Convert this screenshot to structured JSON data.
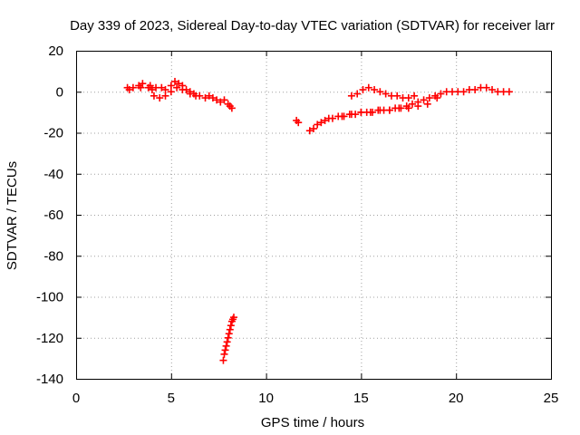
{
  "chart_data": {
    "type": "scatter",
    "title": "Day 339 of 2023, Sidereal Day-to-day VTEC variation (SDTVAR) for receiver larr",
    "xlabel": "GPS time / hours",
    "ylabel": "SDTVAR / TECUs",
    "xlim": [
      0,
      25
    ],
    "ylim": [
      -140,
      20
    ],
    "xticks": [
      0,
      5,
      10,
      15,
      20,
      25
    ],
    "yticks": [
      20,
      0,
      -20,
      -40,
      -60,
      -80,
      -100,
      -120,
      -140
    ],
    "grid": true,
    "marker": "+",
    "series_color": "#ff0000",
    "series": [
      {
        "name": "SDTVAR",
        "x": [
          2.7,
          2.8,
          3.0,
          3.3,
          3.4,
          3.5,
          3.8,
          3.9,
          4.0,
          4.2,
          4.5,
          4.7,
          5.0,
          5.2,
          5.4,
          5.6,
          5.8,
          6.0,
          6.2,
          4.1,
          4.4,
          4.7,
          5.0,
          5.3,
          5.6,
          6.0,
          6.3,
          6.5,
          6.8,
          7.0,
          7.2,
          7.4,
          7.6,
          7.8,
          8.0,
          8.1,
          8.2,
          7.75,
          7.8,
          7.85,
          7.9,
          7.95,
          8.0,
          8.05,
          8.1,
          8.15,
          8.2,
          8.25,
          8.3,
          11.6,
          11.7,
          12.3,
          12.5,
          12.7,
          12.9,
          13.1,
          13.3,
          13.5,
          13.8,
          14.1,
          14.4,
          14.7,
          15.0,
          15.3,
          15.6,
          15.9,
          16.2,
          16.5,
          16.8,
          17.1,
          17.4,
          17.7,
          18.0,
          18.3,
          18.6,
          18.9,
          19.2,
          19.5,
          19.8,
          20.1,
          20.4,
          20.7,
          21.0,
          21.3,
          21.6,
          21.9,
          22.2,
          22.5,
          22.8,
          14.5,
          14.8,
          15.1,
          15.4,
          15.7,
          16.0,
          16.3,
          16.6,
          16.9,
          17.2,
          17.5,
          17.8,
          14.0,
          14.5,
          15.0,
          15.5,
          16.0,
          16.5,
          17.0,
          17.5,
          18.0,
          18.5,
          19.0
        ],
        "y": [
          2,
          1,
          2,
          3,
          2,
          4,
          2,
          3,
          1,
          2,
          2,
          1,
          3,
          5,
          4,
          3,
          1,
          0,
          -1,
          -2,
          -3,
          -2,
          0,
          2,
          1,
          -1,
          -2,
          -2,
          -3,
          -2,
          -3,
          -4,
          -5,
          -4,
          -6,
          -7,
          -8,
          -131,
          -128,
          -126,
          -124,
          -122,
          -120,
          -118,
          -116,
          -114,
          -112,
          -111,
          -110,
          -14,
          -15,
          -19,
          -18,
          -16,
          -15,
          -14,
          -13,
          -13,
          -12,
          -12,
          -11,
          -11,
          -10,
          -10,
          -10,
          -9,
          -9,
          -9,
          -8,
          -8,
          -7,
          -6,
          -5,
          -4,
          -3,
          -2,
          -1,
          0,
          0,
          0,
          0,
          1,
          1,
          2,
          2,
          1,
          0,
          0,
          0,
          -2,
          -1,
          1,
          2,
          1,
          0,
          -1,
          -2,
          -2,
          -3,
          -3,
          -2,
          -12,
          -11,
          -10,
          -10,
          -9,
          -9,
          -8,
          -8,
          -7,
          -6,
          -3
        ]
      }
    ]
  }
}
